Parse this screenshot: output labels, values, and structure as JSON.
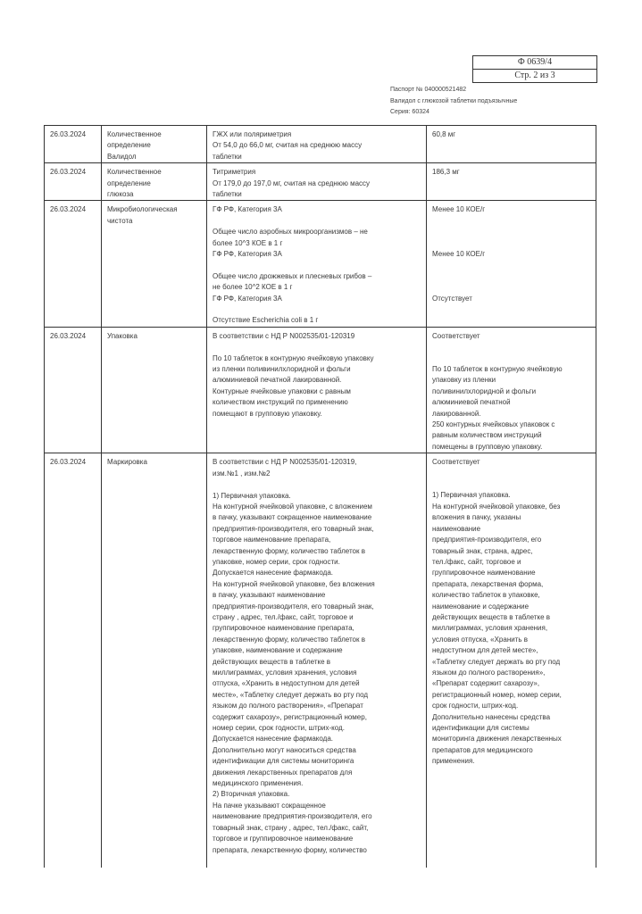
{
  "form": {
    "code": "Ф 0639/4",
    "page": "Стр. 2 из 3"
  },
  "passport": {
    "number": "Паспорт № 040000521482",
    "product": "Валидол с глюкозой таблетки подъязычные",
    "series": "Серия: 60324"
  },
  "rows": [
    {
      "date": "26.03.2024",
      "name": [
        "Количественное",
        "определение",
        "Валидол"
      ],
      "method": [
        "ГЖХ или поляриметрия",
        "От 54,0 до 66,0 мг, считая на среднюю массу",
        "таблетки"
      ],
      "result": [
        "60,8 мг"
      ]
    },
    {
      "date": "26.03.2024",
      "name": [
        "Количественное",
        "определение",
        "глюкоза"
      ],
      "method": [
        "Титриметрия",
        "От 179,0 до 197,0 мг, считая на среднюю массу",
        "таблетки"
      ],
      "result": [
        "186,3 мг"
      ]
    },
    {
      "date": "26.03.2024",
      "name": [
        "Микробиологическая",
        "чистота"
      ],
      "method": [
        "ГФ РФ, Категория 3А",
        "",
        "Общее число аэробных микроорганизмов – не",
        "более 10^3 КОЕ в 1 г",
        "ГФ РФ, Категория 3А",
        "",
        "Общее число дрожжевых и плесневых грибов –",
        "не более 10^2 КОЕ в 1 г",
        "ГФ РФ, Категория 3А",
        "",
        "Отсутствие Escherichia coli в 1 г"
      ],
      "result": [
        "Менее 10 КОЕ/г",
        "",
        "",
        "",
        "Менее 10 КОЕ/г",
        "",
        "",
        "",
        "Отсутствует"
      ]
    },
    {
      "date": "26.03.2024",
      "name": [
        "Упаковка"
      ],
      "method": [
        "В соответствии с НД Р N002535/01-120319",
        "",
        "По 10 таблеток в контурную ячейковую упаковку",
        "из пленки поливинилхлоридной и фольги",
        "алюминиевой печатной лакированной.",
        "Контурные ячейковые упаковки с равным",
        "количеством инструкций по применению",
        "помещают в групповую упаковку."
      ],
      "result": [
        "Соответствует",
        "",
        "",
        "По 10 таблеток в контурную ячейковую",
        "упаковку из пленки",
        "поливинилхлоридной и фольги",
        "алюминиевой печатной",
        "лакированной.",
        "250 контурных ячейковых упаковок с",
        "равным количеством инструкций",
        "помещены в групповую упаковку."
      ]
    },
    {
      "date": "26.03.2024",
      "name": [
        "Маркировка"
      ],
      "method": [
        "В соответствии с НД Р N002535/01-120319,",
        "изм.№1 , изм.№2",
        "",
        "1) Первичная упаковка.",
        "На контурной ячейковой упаковке, с вложением",
        "в пачку, указывают сокращенное наименование",
        "предприятия-производителя, его товарный знак,",
        "торговое наименование препарата,",
        "лекарственную форму, количество таблеток в",
        "упаковке, номер серии, срок годности.",
        "Допускается нанесение фармакода.",
        "На контурной ячейковой упаковке, без вложения",
        "в пачку, указывают наименование",
        "предприятия-производителя, его товарный знак,",
        "страну , адрес, тел./факс, сайт, торговое и",
        "группировочное наименование препарата,",
        "лекарственную форму, количество таблеток в",
        "упаковке, наименование и содержание",
        "действующих веществ в таблетке в",
        "миллиграммах, условия хранения, условия",
        "отпуска, «Хранить в недоступном для детей",
        "месте», «Таблетку следует держать во рту под",
        "языком до полного растворения», «Препарат",
        "содержит сахарозу», регистрационный номер,",
        "номер серии, срок годности, штрих-код.",
        "Допускается нанесение фармакода.",
        "Дополнительно могут наноситься средства",
        "идентификации для системы мониторинга",
        "движения лекарственных препаратов для",
        "медицинского применения.",
        "2) Вторичная упаковка.",
        "На пачке указывают сокращенное",
        "наименование предприятия-производителя, его",
        "товарный знак, страну , адрес, тел./факс, сайт,",
        "торговое и группировочное наименование",
        "препарата, лекарственную форму, количество"
      ],
      "result": [
        "Соответствует",
        "",
        "",
        "1) Первичная упаковка.",
        "На контурной ячейковой упаковке, без",
        "вложения в пачку, указаны",
        "наименование",
        "предприятия-производителя, его",
        "товарный знак, страна, адрес,",
        "тел./факс, сайт, торговое и",
        "группировочное наименование",
        "препарата, лекарственая форма,",
        "количество таблеток в упаковке,",
        "наименование и содержание",
        "действующих веществ в таблетке в",
        "миллиграммах, условия хранения,",
        "условия отпуска, «Хранить в",
        "недоступном для детей месте»,",
        "«Таблетку следует держать во рту под",
        "языком до полного растворения»,",
        "«Препарат содержит сахарозу»,",
        "регистрационный номер, номер серии,",
        "срок годности, штрих-код.",
        "Дополнительно нанесены средства",
        "идентификации для системы",
        "мониторинга движения лекарственных",
        "препаратов для медицинского",
        "применения."
      ]
    }
  ]
}
